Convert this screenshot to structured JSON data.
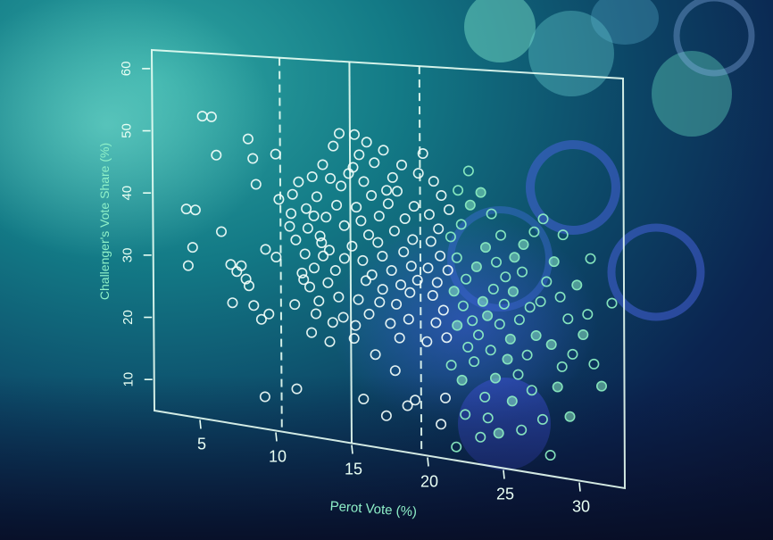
{
  "chart_data": {
    "type": "scatter",
    "xlabel": "Perot Vote (%)",
    "ylabel": "Challenger's Vote Share (%)",
    "xlim": [
      2,
      33
    ],
    "ylim": [
      5,
      63
    ],
    "x_ticks": [
      "5",
      "10",
      "15",
      "20",
      "25",
      "30"
    ],
    "y_ticks": [
      "10",
      "20",
      "30",
      "40",
      "50",
      "60"
    ],
    "vertical_lines": [
      {
        "x": 10.4,
        "style": "dashed"
      },
      {
        "x": 15,
        "style": "solid"
      },
      {
        "x": 19.6,
        "style": "dashed"
      }
    ],
    "marker": "open-circle",
    "colors": {
      "axis": "#e9fff4",
      "points_left": "#f4fffb",
      "points_right": "#8ff2c4"
    },
    "points": [
      [
        5.3,
        53
      ],
      [
        5.9,
        53
      ],
      [
        6.2,
        47
      ],
      [
        8.3,
        50
      ],
      [
        8.6,
        47
      ],
      [
        8.8,
        43
      ],
      [
        4.2,
        38
      ],
      [
        4.8,
        38
      ],
      [
        4.6,
        32
      ],
      [
        4.3,
        29
      ],
      [
        6.5,
        35
      ],
      [
        7.1,
        30
      ],
      [
        7.5,
        29
      ],
      [
        7.8,
        30
      ],
      [
        7.2,
        24
      ],
      [
        8.1,
        28
      ],
      [
        8.3,
        27
      ],
      [
        8.6,
        24
      ],
      [
        9.1,
        22
      ],
      [
        9.6,
        23
      ],
      [
        9.4,
        33
      ],
      [
        10.1,
        32
      ],
      [
        9.3,
        10
      ],
      [
        10.1,
        48
      ],
      [
        10.3,
        41
      ],
      [
        11.2,
        42
      ],
      [
        11.6,
        44
      ],
      [
        12.1,
        40
      ],
      [
        12.6,
        39
      ],
      [
        11.0,
        37
      ],
      [
        11.4,
        35
      ],
      [
        12.0,
        33
      ],
      [
        12.6,
        31
      ],
      [
        13.1,
        35
      ],
      [
        13.6,
        34
      ],
      [
        11.8,
        30
      ],
      [
        12.3,
        28
      ],
      [
        12.9,
        26
      ],
      [
        13.5,
        29
      ],
      [
        14.0,
        31
      ],
      [
        14.2,
        27
      ],
      [
        11.3,
        25
      ],
      [
        12.7,
        24
      ],
      [
        13.8,
        23
      ],
      [
        14.5,
        24
      ],
      [
        12.5,
        45
      ],
      [
        13.2,
        47
      ],
      [
        13.9,
        50
      ],
      [
        14.3,
        52
      ],
      [
        12.2,
        37
      ],
      [
        13.4,
        39
      ],
      [
        14.1,
        41
      ],
      [
        14.6,
        38
      ],
      [
        11.9,
        29
      ],
      [
        13.0,
        36
      ],
      [
        12.4,
        21
      ],
      [
        13.6,
        20
      ],
      [
        11.4,
        12
      ],
      [
        13.2,
        33
      ],
      [
        14.4,
        44
      ],
      [
        13.7,
        45
      ],
      [
        12.8,
        42
      ],
      [
        11.1,
        39
      ],
      [
        14.9,
        46
      ],
      [
        14.6,
        33
      ],
      [
        15.3,
        52
      ],
      [
        15.6,
        49
      ],
      [
        16.1,
        51
      ],
      [
        15.2,
        47
      ],
      [
        15.9,
        45
      ],
      [
        16.6,
        48
      ],
      [
        17.2,
        50
      ],
      [
        15.4,
        41
      ],
      [
        15.7,
        39
      ],
      [
        16.2,
        37
      ],
      [
        16.9,
        40
      ],
      [
        17.5,
        42
      ],
      [
        18.1,
        44
      ],
      [
        15.1,
        35
      ],
      [
        15.8,
        33
      ],
      [
        16.4,
        31
      ],
      [
        17.1,
        34
      ],
      [
        17.7,
        32
      ],
      [
        18.3,
        30
      ],
      [
        18.9,
        29
      ],
      [
        15.5,
        27
      ],
      [
        16.2,
        25
      ],
      [
        16.9,
        27
      ],
      [
        17.6,
        24
      ],
      [
        18.2,
        22
      ],
      [
        18.8,
        25
      ],
      [
        15.2,
        21
      ],
      [
        16.6,
        19
      ],
      [
        17.9,
        17
      ],
      [
        18.7,
        12
      ],
      [
        19.2,
        13
      ],
      [
        17.3,
        10
      ],
      [
        15.8,
        12
      ],
      [
        16.8,
        36
      ],
      [
        17.9,
        38
      ],
      [
        18.6,
        40
      ],
      [
        19.2,
        42
      ],
      [
        19.5,
        47
      ],
      [
        18.4,
        48
      ],
      [
        17.8,
        46
      ],
      [
        16.4,
        43
      ],
      [
        17.1,
        29
      ],
      [
        18.5,
        35
      ],
      [
        19.0,
        33
      ],
      [
        16.0,
        30
      ],
      [
        15.3,
        23
      ],
      [
        18.0,
        27
      ],
      [
        19.4,
        31
      ],
      [
        19.1,
        37
      ],
      [
        17.4,
        44
      ],
      [
        19.8,
        50
      ],
      [
        20.5,
        46
      ],
      [
        21.0,
        44
      ],
      [
        20.2,
        41
      ],
      [
        20.8,
        39
      ],
      [
        21.5,
        42
      ],
      [
        22.1,
        45
      ],
      [
        20.3,
        37
      ],
      [
        20.9,
        35
      ],
      [
        21.6,
        38
      ],
      [
        22.3,
        40
      ],
      [
        22.9,
        43
      ],
      [
        20.1,
        33
      ],
      [
        20.7,
        31
      ],
      [
        21.4,
        33
      ],
      [
        22.0,
        35
      ],
      [
        22.6,
        32
      ],
      [
        23.3,
        34
      ],
      [
        20.4,
        29
      ],
      [
        21.1,
        27
      ],
      [
        21.8,
        30
      ],
      [
        22.4,
        28
      ],
      [
        23.0,
        26
      ],
      [
        23.7,
        29
      ],
      [
        20.6,
        25
      ],
      [
        21.3,
        23
      ],
      [
        22.0,
        25
      ],
      [
        22.7,
        22
      ],
      [
        23.4,
        24
      ],
      [
        24.0,
        27
      ],
      [
        20.0,
        22
      ],
      [
        21.6,
        19
      ],
      [
        22.3,
        17
      ],
      [
        23.1,
        20
      ],
      [
        24.2,
        22
      ],
      [
        21.2,
        14
      ],
      [
        22.5,
        12
      ],
      [
        23.8,
        15
      ],
      [
        24.5,
        18
      ],
      [
        20.9,
        10
      ],
      [
        22.8,
        48
      ],
      [
        23.6,
        45
      ],
      [
        24.3,
        42
      ],
      [
        24.9,
        39
      ],
      [
        23.9,
        37
      ],
      [
        24.6,
        35
      ],
      [
        25.2,
        33
      ],
      [
        25.8,
        36
      ],
      [
        24.4,
        31
      ],
      [
        25.1,
        29
      ],
      [
        25.7,
        31
      ],
      [
        26.3,
        34
      ],
      [
        24.8,
        26
      ],
      [
        25.5,
        24
      ],
      [
        26.1,
        27
      ],
      [
        26.8,
        29
      ],
      [
        25.3,
        21
      ],
      [
        26.0,
        19
      ],
      [
        26.6,
        22
      ],
      [
        27.2,
        25
      ],
      [
        27.5,
        30
      ],
      [
        27.9,
        33
      ],
      [
        28.4,
        36
      ],
      [
        28.8,
        31
      ],
      [
        29.3,
        28
      ],
      [
        26.4,
        38
      ],
      [
        27.1,
        40
      ],
      [
        27.7,
        42
      ],
      [
        28.2,
        24
      ],
      [
        28.9,
        21
      ],
      [
        29.6,
        23
      ],
      [
        30.3,
        26
      ],
      [
        31.0,
        22
      ],
      [
        30.6,
        29
      ],
      [
        29.9,
        33
      ],
      [
        29.0,
        40
      ],
      [
        30.8,
        37
      ],
      [
        31.5,
        19
      ],
      [
        32.2,
        31
      ],
      [
        24.0,
        12
      ],
      [
        25.6,
        15
      ],
      [
        26.9,
        17
      ],
      [
        27.6,
        13
      ],
      [
        28.6,
        18
      ],
      [
        23.5,
        9
      ],
      [
        21.9,
        7
      ],
      [
        24.7,
        10
      ],
      [
        26.2,
        11
      ],
      [
        28.1,
        8
      ],
      [
        29.4,
        14
      ]
    ]
  }
}
